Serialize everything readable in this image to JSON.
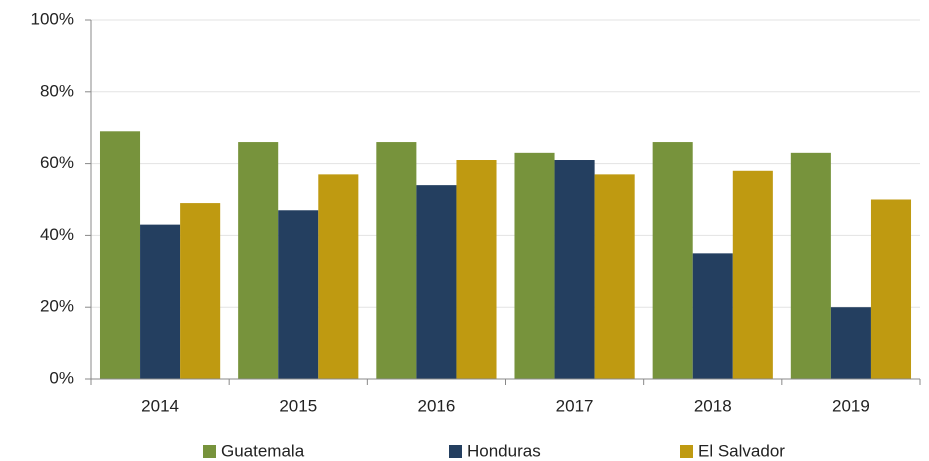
{
  "chart_data": {
    "type": "bar",
    "categories": [
      "2014",
      "2015",
      "2016",
      "2017",
      "2018",
      "2019"
    ],
    "series": [
      {
        "name": "Guatemala",
        "color": "#77933c",
        "values": [
          69,
          66,
          66,
          63,
          66,
          63
        ]
      },
      {
        "name": "Honduras",
        "color": "#243f60",
        "values": [
          43,
          47,
          54,
          61,
          35,
          20
        ]
      },
      {
        "name": "El Salvador",
        "color": "#bf9a11",
        "values": [
          49,
          57,
          61,
          57,
          58,
          50
        ]
      }
    ],
    "ylim": [
      0,
      100
    ],
    "yticks": [
      {
        "value": 0,
        "label": "0%"
      },
      {
        "value": 20,
        "label": "20%"
      },
      {
        "value": 40,
        "label": "40%"
      },
      {
        "value": 60,
        "label": "60%"
      },
      {
        "value": 80,
        "label": "80%"
      },
      {
        "value": 100,
        "label": "100%"
      }
    ],
    "grid": true,
    "legend": "bottom"
  }
}
